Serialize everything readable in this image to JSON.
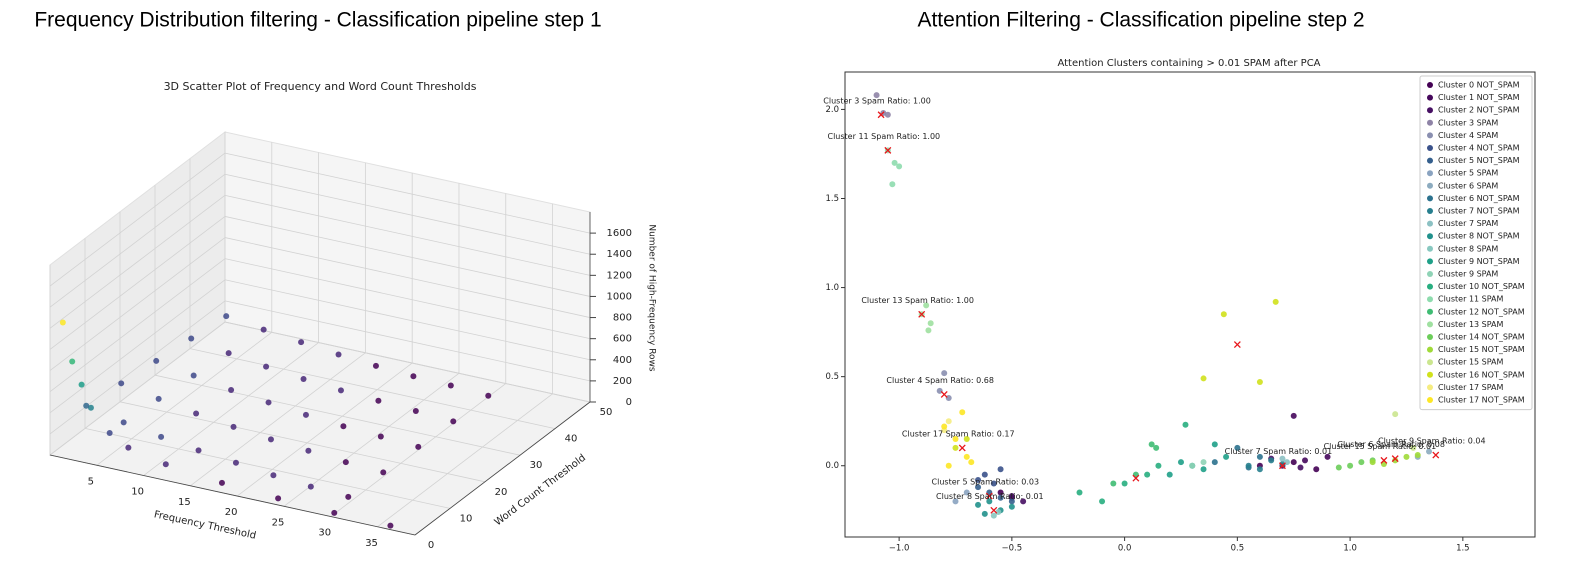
{
  "chart_data": [
    {
      "type": "scatter3d",
      "heading": "Frequency Distribution filtering - Classification pipeline step 1",
      "title": "3D Scatter Plot of Frequency and Word Count Thresholds",
      "xlabel": "Frequency Threshold",
      "ylabel": "Word Count Threshold",
      "zlabel": "Number of High-Frequency Rows",
      "colormap": "viridis",
      "xlim": [
        0,
        39
      ],
      "ylim": [
        0,
        50
      ],
      "zlim": [
        0,
        1800
      ],
      "xticks": [
        5,
        10,
        15,
        20,
        25,
        30,
        35
      ],
      "yticks": [
        0,
        10,
        20,
        30,
        40,
        50
      ],
      "zticks": [
        0,
        200,
        400,
        600,
        800,
        1000,
        1200,
        1400,
        1600
      ],
      "x": [
        1,
        2,
        3,
        4,
        6,
        8,
        12,
        18,
        24,
        30,
        36,
        2,
        6,
        10,
        14,
        18,
        22,
        26,
        30,
        2,
        6,
        10,
        14,
        18,
        22,
        26,
        30,
        2,
        6,
        10,
        14,
        18,
        22,
        26,
        30,
        2,
        6,
        10,
        14,
        18,
        22,
        26,
        30,
        2,
        6,
        10,
        14,
        18,
        22,
        26,
        30
      ],
      "y": [
        1,
        1,
        1,
        1,
        1,
        1,
        1,
        1,
        1,
        1,
        1,
        5,
        5,
        5,
        5,
        5,
        5,
        5,
        5,
        15,
        15,
        15,
        15,
        15,
        15,
        15,
        15,
        25,
        25,
        25,
        25,
        25,
        25,
        25,
        25,
        35,
        35,
        35,
        35,
        35,
        35,
        35,
        35,
        45,
        45,
        45,
        45,
        45,
        45,
        45,
        45
      ],
      "z": [
        1250,
        900,
        700,
        500,
        300,
        200,
        120,
        60,
        30,
        10,
        5,
        380,
        300,
        240,
        190,
        150,
        110,
        80,
        60,
        340,
        270,
        210,
        160,
        120,
        90,
        60,
        40,
        300,
        240,
        180,
        140,
        100,
        70,
        50,
        30,
        260,
        200,
        150,
        110,
        80,
        60,
        40,
        20,
        220,
        170,
        130,
        90,
        60,
        40,
        30,
        10
      ]
    },
    {
      "type": "scatter",
      "heading": "Attention Filtering - Classification pipeline step 2",
      "title": "Attention Clusters containing > 0.01 SPAM after PCA",
      "xlim": [
        -1.24,
        1.82
      ],
      "ylim": [
        -0.4,
        2.21
      ],
      "xticks": [
        {
          "value": -1,
          "label": "−1.0"
        },
        {
          "value": -0.5,
          "label": "−0.5"
        },
        {
          "value": 0,
          "label": "0.0"
        },
        {
          "value": 0.5,
          "label": "0.5"
        },
        {
          "value": 1,
          "label": "1.0"
        },
        {
          "value": 1.5,
          "label": "1.5"
        }
      ],
      "yticks": [
        {
          "value": 0,
          "label": "0.0"
        },
        {
          "value": 0.5,
          "label": "0.5"
        },
        {
          "value": 1,
          "label": "1.0"
        },
        {
          "value": 1.5,
          "label": "1.5"
        },
        {
          "value": 2,
          "label": "2.0"
        }
      ],
      "legend": "upper right",
      "series": [
        {
          "name": "Cluster 0 NOT_SPAM",
          "color": "#440154",
          "x": [
            0.6,
            0.75,
            0.85,
            -0.55,
            -0.5
          ],
          "y": [
            0,
            0.02,
            -0.02,
            -0.15,
            -0.18
          ]
        },
        {
          "name": "Cluster 1 NOT_SPAM",
          "color": "#46085c",
          "x": [
            0.7,
            0.8,
            0.9,
            0.75
          ],
          "y": [
            0,
            0.03,
            0.05,
            0.28
          ]
        },
        {
          "name": "Cluster 2 NOT_SPAM",
          "color": "#471063",
          "x": [
            0.65,
            0.78,
            -0.45,
            -0.5
          ],
          "y": [
            0.04,
            -0.01,
            -0.2,
            -0.17
          ]
        },
        {
          "name": "Cluster 3 SPAM",
          "color": "#8e83a6",
          "x": [
            -1.1,
            -1.07,
            -1.05
          ],
          "y": [
            2.08,
            1.98,
            1.97
          ]
        },
        {
          "name": "Cluster 4 SPAM",
          "color": "#8a8fb0",
          "x": [
            -0.8,
            -0.82,
            -0.78
          ],
          "y": [
            0.52,
            0.42,
            0.38
          ]
        },
        {
          "name": "Cluster 4 NOT_SPAM",
          "color": "#3b528b",
          "x": [
            -0.62,
            -0.58,
            -0.55,
            -0.65
          ],
          "y": [
            -0.05,
            -0.1,
            -0.02,
            -0.08
          ]
        },
        {
          "name": "Cluster 5 NOT_SPAM",
          "color": "#355f8d",
          "x": [
            -0.6,
            -0.55,
            -0.65,
            -0.5
          ],
          "y": [
            -0.15,
            -0.18,
            -0.12,
            -0.2
          ]
        },
        {
          "name": "Cluster 5 SPAM",
          "color": "#8aa3c0",
          "x": [
            -0.7,
            -0.75
          ],
          "y": [
            -0.15,
            -0.2
          ]
        },
        {
          "name": "Cluster 6 SPAM",
          "color": "#8cabbf",
          "x": [
            1.3,
            1.35
          ],
          "y": [
            0.05,
            0.08
          ]
        },
        {
          "name": "Cluster 6 NOT_SPAM",
          "color": "#2c728e",
          "x": [
            0.4,
            0.55,
            0.6,
            0.5
          ],
          "y": [
            0.02,
            -0.01,
            0.05,
            0.1
          ]
        },
        {
          "name": "Cluster 7 NOT_SPAM",
          "color": "#277f8e",
          "x": [
            0.6,
            0.7,
            0.65,
            0.55
          ],
          "y": [
            -0.02,
            0.01,
            0.03,
            0
          ]
        },
        {
          "name": "Cluster 7 SPAM",
          "color": "#8cc1c3",
          "x": [
            0.7,
            0.72
          ],
          "y": [
            0.04,
            0.02
          ]
        },
        {
          "name": "Cluster 8 NOT_SPAM",
          "color": "#21918c",
          "x": [
            -0.6,
            -0.55,
            -0.65,
            -0.5,
            -0.62
          ],
          "y": [
            -0.2,
            -0.25,
            -0.22,
            -0.23,
            -0.27
          ]
        },
        {
          "name": "Cluster 8 SPAM",
          "color": "#88c8c0",
          "x": [
            -0.58,
            -0.56
          ],
          "y": [
            -0.28,
            -0.26
          ]
        },
        {
          "name": "Cluster 9 NOT_SPAM",
          "color": "#1fa088",
          "x": [
            0.2,
            0.3,
            0.35,
            0.45,
            0.25,
            0.4
          ],
          "y": [
            -0.05,
            0,
            -0.02,
            0.05,
            0.02,
            0.12
          ]
        },
        {
          "name": "Cluster 9 SPAM",
          "color": "#8fd3b6",
          "x": [
            0.3,
            0.35
          ],
          "y": [
            0,
            0.02
          ]
        },
        {
          "name": "Cluster 10 NOT_SPAM",
          "color": "#28ae80",
          "x": [
            -0.2,
            -0.1,
            0,
            0.1,
            0.15,
            0.27
          ],
          "y": [
            -0.15,
            -0.2,
            -0.1,
            -0.05,
            0,
            0.23
          ]
        },
        {
          "name": "Cluster 11 SPAM",
          "color": "#8edcae",
          "x": [
            -1.05,
            -1.02,
            -1,
            -1.03
          ],
          "y": [
            1.77,
            1.7,
            1.68,
            1.58
          ]
        },
        {
          "name": "Cluster 12 NOT_SPAM",
          "color": "#3fbc73",
          "x": [
            0.12,
            0.14,
            -0.05,
            0.05
          ],
          "y": [
            0.12,
            0.1,
            -0.1,
            -0.05
          ]
        },
        {
          "name": "Cluster 13 SPAM",
          "color": "#9fe0a0",
          "x": [
            -0.88,
            -0.9,
            -0.86,
            -0.87
          ],
          "y": [
            0.9,
            0.85,
            0.8,
            0.76
          ]
        },
        {
          "name": "Cluster 14 NOT_SPAM",
          "color": "#6ccd5a",
          "x": [
            1,
            1.05,
            1.1,
            0.95
          ],
          "y": [
            0,
            0.02,
            0.03,
            -0.01
          ]
        },
        {
          "name": "Cluster 15 NOT_SPAM",
          "color": "#a0da39",
          "x": [
            1.1,
            1.2,
            1.25,
            1.3,
            1.15
          ],
          "y": [
            0.02,
            0.03,
            0.05,
            0.06,
            0.01
          ]
        },
        {
          "name": "Cluster 15 SPAM",
          "color": "#cbe68f",
          "x": [
            1.2,
            1.28
          ],
          "y": [
            0.29,
            0.1
          ]
        },
        {
          "name": "Cluster 16 NOT_SPAM",
          "color": "#d0e11c",
          "x": [
            0.44,
            0.67,
            0.35,
            0.6,
            -0.75,
            -0.7
          ],
          "y": [
            0.85,
            0.92,
            0.49,
            0.47,
            0.1,
            0.15
          ]
        },
        {
          "name": "Cluster 17 SPAM",
          "color": "#f5ec80",
          "x": [
            -0.8,
            -0.78
          ],
          "y": [
            0.2,
            0.25
          ]
        },
        {
          "name": "Cluster 17 NOT_SPAM",
          "color": "#fde725",
          "x": [
            -0.8,
            -0.75,
            -0.7,
            -0.78,
            -0.72,
            -0.68
          ],
          "y": [
            0.22,
            0.15,
            0.05,
            0,
            0.3,
            0.02
          ]
        }
      ],
      "centroids": {
        "color": "#e8161b",
        "x": [
          -1.08,
          -1.05,
          -0.9,
          -0.8,
          -0.72,
          -0.6,
          -0.58,
          0.7,
          1.2,
          1.15,
          1.38,
          0.05,
          0.5
        ],
        "y": [
          1.97,
          1.77,
          0.85,
          0.4,
          0.1,
          -0.17,
          -0.25,
          0,
          0.04,
          0.03,
          0.06,
          -0.07,
          0.68
        ]
      },
      "annotations": [
        {
          "text": "Cluster 3 Spam Ratio: 1.00",
          "x": -1.08,
          "y": 1.97
        },
        {
          "text": "Cluster 11 Spam Ratio: 1.00",
          "x": -1.05,
          "y": 1.77
        },
        {
          "text": "Cluster 13 Spam Ratio: 1.00",
          "x": -0.9,
          "y": 0.85
        },
        {
          "text": "Cluster 4 Spam Ratio: 0.68",
          "x": -0.8,
          "y": 0.4
        },
        {
          "text": "Cluster 17 Spam Ratio: 0.17",
          "x": -0.72,
          "y": 0.1
        },
        {
          "text": "Cluster 5 Spam Ratio: 0.03",
          "x": -0.6,
          "y": -0.17
        },
        {
          "text": "Cluster 8 Spam Ratio: 0.01",
          "x": -0.58,
          "y": -0.25
        },
        {
          "text": "Cluster 7 Spam Ratio: 0.01",
          "x": 0.7,
          "y": 0
        },
        {
          "text": "Cluster 6 Spam Ratio: 0.08",
          "x": 1.2,
          "y": 0.04
        },
        {
          "text": "Cluster 15 Spam Ratio: 0.01",
          "x": 1.15,
          "y": 0.03
        },
        {
          "text": "Cluster 9 Spam Ratio: 0.04",
          "x": 1.38,
          "y": 0.06
        }
      ]
    }
  ]
}
